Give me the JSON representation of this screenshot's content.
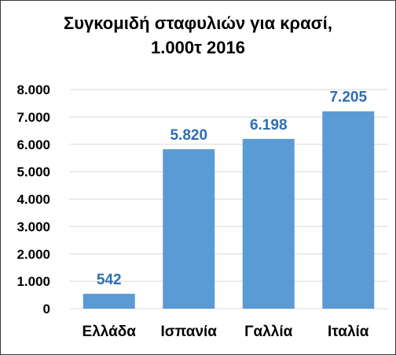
{
  "chart_data": {
    "type": "bar",
    "title_line1": "Συγκομιδή σταφυλιών για κρασί,",
    "title_line2": "1.000τ 2016",
    "categories": [
      "Ελλάδα",
      "Ισπανία",
      "Γαλλία",
      "Ιταλία"
    ],
    "values": [
      542,
      5820,
      6198,
      7205
    ],
    "value_labels": [
      "542",
      "5.820",
      "6.198",
      "7.205"
    ],
    "ylim": [
      0,
      8000
    ],
    "y_ticks": [
      0,
      1000,
      2000,
      3000,
      4000,
      5000,
      6000,
      7000,
      8000
    ],
    "y_tick_labels": [
      "0",
      "1.000",
      "2.000",
      "3.000",
      "4.000",
      "5.000",
      "6.000",
      "7.000",
      "8.000"
    ],
    "grid": true,
    "legend": "none",
    "colors": {
      "bar": "#5b9bd5",
      "data_label": "#2e6db4",
      "grid": "#d9d9d9",
      "frame": "#3a3a3a"
    }
  }
}
